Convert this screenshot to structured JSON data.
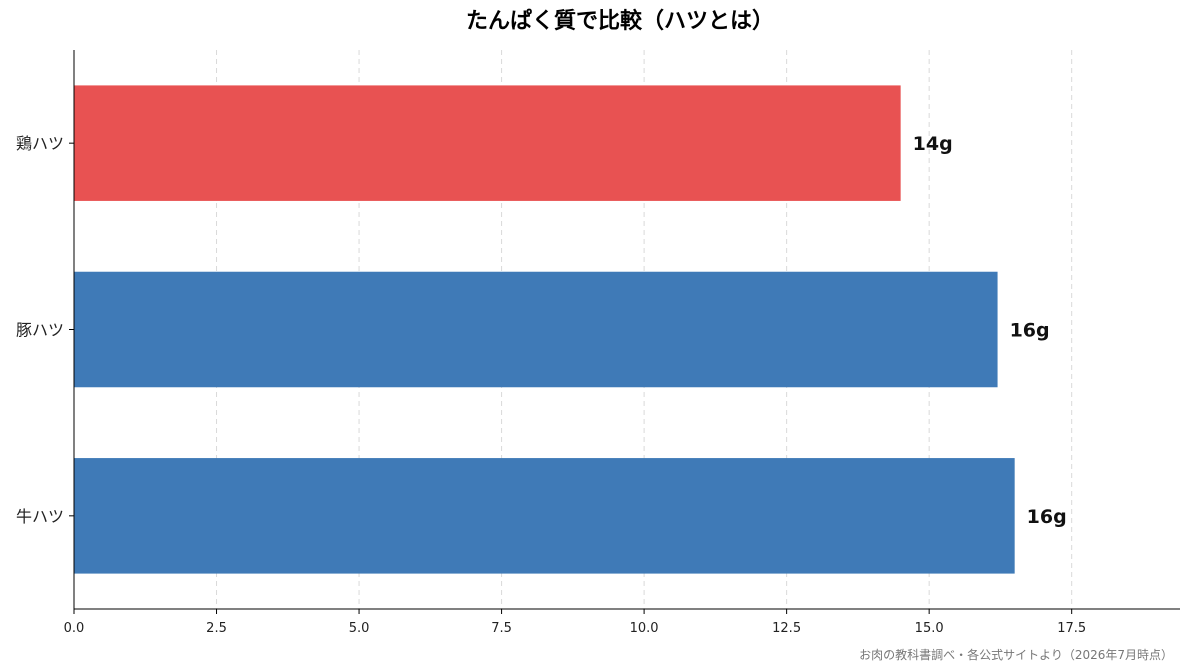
{
  "chart_data": {
    "type": "bar",
    "orientation": "horizontal",
    "title": "たんぱく質で比較（ハツとは）",
    "categories": [
      "鶏ハツ",
      "豚ハツ",
      "牛ハツ"
    ],
    "values": [
      14.5,
      16.2,
      16.5
    ],
    "data_labels": [
      "14g",
      "16g",
      "16g"
    ],
    "colors": [
      "#e85252",
      "#3f7ab7",
      "#3f7ab7"
    ],
    "xlim": [
      0,
      19.4
    ],
    "xticks": [
      "0.0",
      "2.5",
      "5.0",
      "7.5",
      "10.0",
      "12.5",
      "15.0",
      "17.5"
    ],
    "xtick_values": [
      0,
      2.5,
      5,
      7.5,
      10,
      12.5,
      15,
      17.5
    ],
    "grid": "vertical-dashed",
    "legend": "none"
  },
  "source_note": "お肉の教科書調べ・各公式サイトより（2026年7月時点）"
}
